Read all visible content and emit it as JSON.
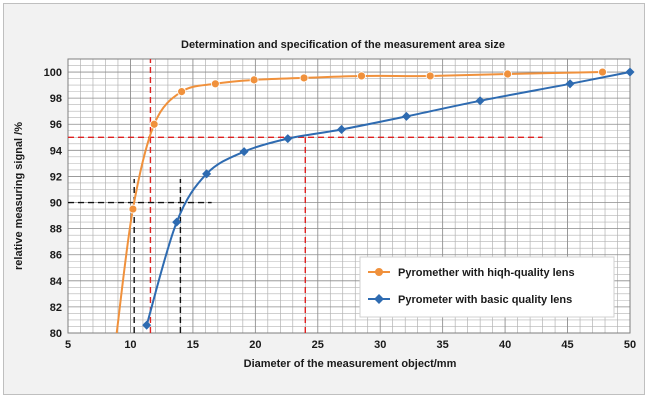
{
  "chart_data": {
    "type": "line",
    "title": "Determination and specification of the measurement area size",
    "xlabel": "Diameter of the measurement object/mm",
    "ylabel": "relative measuring signal /%",
    "xlim": [
      5,
      50
    ],
    "ylim": [
      80,
      101
    ],
    "x_ticks": [
      5,
      10,
      15,
      20,
      25,
      30,
      35,
      40,
      45,
      50
    ],
    "y_ticks": [
      80,
      82,
      84,
      86,
      88,
      90,
      92,
      94,
      96,
      98,
      100
    ],
    "grid": true,
    "legend_position": "lower-right",
    "series": [
      {
        "name": "Pyromether with hiqh-quality lens",
        "color": "#f0913c",
        "x": [
          10.2,
          11.9,
          14.1,
          16.8,
          19.9,
          23.9,
          28.5,
          34.0,
          40.2,
          47.8
        ],
        "y": [
          89.5,
          96.0,
          98.5,
          99.1,
          99.4,
          99.55,
          99.7,
          99.7,
          99.85,
          100.0
        ],
        "tail_start": [
          8.9,
          80.0
        ]
      },
      {
        "name": "Pyrometer with basic quality lens",
        "color": "#2e6bb1",
        "x": [
          11.3,
          13.7,
          16.1,
          19.1,
          22.6,
          26.9,
          32.1,
          38.0,
          45.2,
          50.0
        ],
        "y": [
          80.6,
          88.5,
          92.2,
          93.9,
          94.9,
          95.6,
          96.6,
          97.8,
          99.1,
          100.0
        ]
      }
    ],
    "reference_lines": [
      {
        "orientation": "horizontal",
        "y": 95,
        "x_from": 5,
        "x_to": 43,
        "color": "#e02020"
      },
      {
        "orientation": "vertical",
        "x": 11.6,
        "y_from": 80,
        "y_to": 101,
        "color": "#e02020"
      },
      {
        "orientation": "vertical",
        "x": 24.0,
        "y_from": 80,
        "y_to": 95,
        "color": "#e02020"
      },
      {
        "orientation": "horizontal",
        "y": 90,
        "x_from": 5,
        "x_to": 16.5,
        "color": "#111111"
      },
      {
        "orientation": "vertical",
        "x": 10.3,
        "y_from": 80,
        "y_to": 91.8,
        "color": "#111111"
      },
      {
        "orientation": "vertical",
        "x": 14.0,
        "y_from": 80,
        "y_to": 91.8,
        "color": "#111111"
      }
    ]
  }
}
